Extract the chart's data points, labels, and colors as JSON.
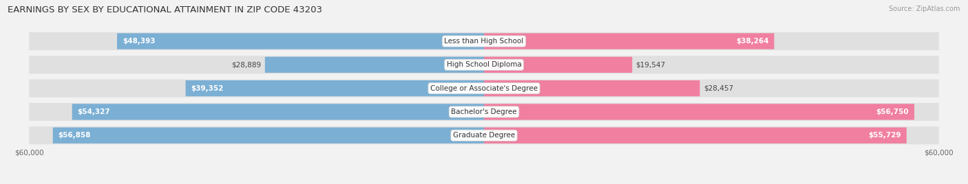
{
  "title": "EARNINGS BY SEX BY EDUCATIONAL ATTAINMENT IN ZIP CODE 43203",
  "source": "Source: ZipAtlas.com",
  "categories": [
    "Less than High School",
    "High School Diploma",
    "College or Associate's Degree",
    "Bachelor's Degree",
    "Graduate Degree"
  ],
  "male_values": [
    48393,
    28889,
    39352,
    54327,
    56858
  ],
  "female_values": [
    38264,
    19547,
    28457,
    56750,
    55729
  ],
  "male_color": "#7bafd4",
  "female_color": "#f07fa0",
  "male_label_threshold": 30000,
  "female_label_threshold": 30000,
  "max_value": 60000,
  "x_label_left": "$60,000",
  "x_label_right": "$60,000",
  "background_color": "#f2f2f2",
  "row_bg_color": "#e0e0e0",
  "title_fontsize": 9.5,
  "source_fontsize": 7,
  "label_fontsize": 7.5,
  "bar_height": 0.68
}
